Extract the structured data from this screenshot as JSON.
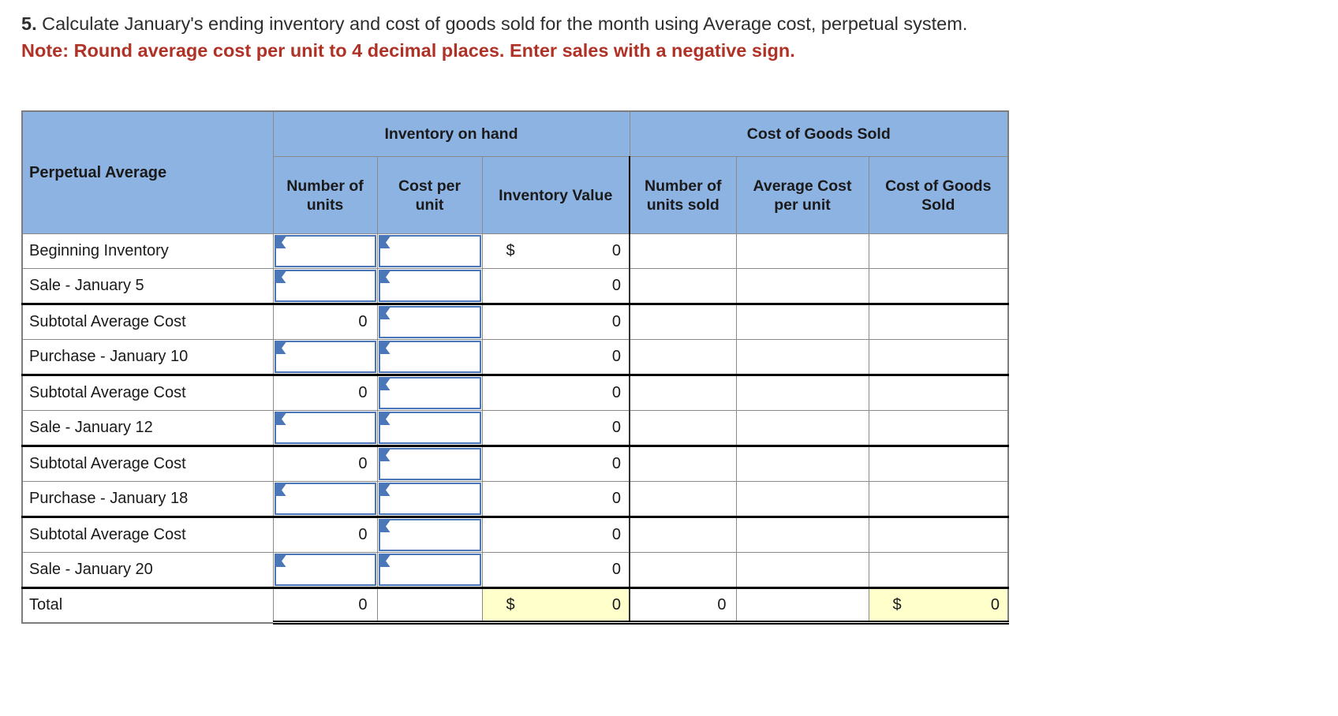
{
  "title": {
    "number": "5.",
    "text": " Calculate January's ending inventory and cost of goods sold for the month using Average cost, perpetual system.",
    "note": "Note: Round average cost per unit to 4 decimal places. Enter sales with a negative sign."
  },
  "table": {
    "corner_header": "Perpetual Average",
    "groups": [
      {
        "label": "Inventory on hand"
      },
      {
        "label": "Cost of Goods Sold"
      }
    ],
    "columns": [
      "Number of units",
      "Cost per unit",
      "Inventory Value",
      "Number of units sold",
      "Average Cost per unit",
      "Cost of Goods Sold"
    ],
    "rows": [
      {
        "label": "Beginning Inventory",
        "units": {
          "kind": "input"
        },
        "cost": {
          "kind": "input"
        },
        "inv": {
          "dollar": "$",
          "value": "0"
        },
        "sold": "",
        "avg": "",
        "cogs": {
          "dollar": "",
          "value": ""
        }
      },
      {
        "label": "Sale - January 5",
        "units": {
          "kind": "input"
        },
        "cost": {
          "kind": "input"
        },
        "inv": {
          "dollar": "",
          "value": "0"
        },
        "sold": "",
        "avg": "",
        "cogs": {
          "dollar": "",
          "value": ""
        }
      },
      {
        "label": "Subtotal Average Cost",
        "thick_top": true,
        "units": {
          "kind": "value",
          "value": "0"
        },
        "cost": {
          "kind": "input"
        },
        "inv": {
          "dollar": "",
          "value": "0"
        },
        "sold": "",
        "avg": "",
        "cogs": {
          "dollar": "",
          "value": ""
        }
      },
      {
        "label": "Purchase - January 10",
        "units": {
          "kind": "input"
        },
        "cost": {
          "kind": "input"
        },
        "inv": {
          "dollar": "",
          "value": "0"
        },
        "sold": "",
        "avg": "",
        "cogs": {
          "dollar": "",
          "value": ""
        }
      },
      {
        "label": "Subtotal Average Cost",
        "thick_top": true,
        "units": {
          "kind": "value",
          "value": "0"
        },
        "cost": {
          "kind": "input"
        },
        "inv": {
          "dollar": "",
          "value": "0"
        },
        "sold": "",
        "avg": "",
        "cogs": {
          "dollar": "",
          "value": ""
        }
      },
      {
        "label": "Sale - January 12",
        "units": {
          "kind": "input"
        },
        "cost": {
          "kind": "input"
        },
        "inv": {
          "dollar": "",
          "value": "0"
        },
        "sold": "",
        "avg": "",
        "cogs": {
          "dollar": "",
          "value": ""
        }
      },
      {
        "label": "Subtotal Average Cost",
        "thick_top": true,
        "units": {
          "kind": "value",
          "value": "0"
        },
        "cost": {
          "kind": "input"
        },
        "inv": {
          "dollar": "",
          "value": "0"
        },
        "sold": "",
        "avg": "",
        "cogs": {
          "dollar": "",
          "value": ""
        }
      },
      {
        "label": "Purchase - January 18",
        "units": {
          "kind": "input"
        },
        "cost": {
          "kind": "input"
        },
        "inv": {
          "dollar": "",
          "value": "0"
        },
        "sold": "",
        "avg": "",
        "cogs": {
          "dollar": "",
          "value": ""
        }
      },
      {
        "label": "Subtotal Average Cost",
        "thick_top": true,
        "units": {
          "kind": "value",
          "value": "0"
        },
        "cost": {
          "kind": "input"
        },
        "inv": {
          "dollar": "",
          "value": "0"
        },
        "sold": "",
        "avg": "",
        "cogs": {
          "dollar": "",
          "value": ""
        }
      },
      {
        "label": "Sale - January 20",
        "units": {
          "kind": "input"
        },
        "cost": {
          "kind": "input"
        },
        "inv": {
          "dollar": "",
          "value": "0"
        },
        "sold": "",
        "avg": "",
        "cogs": {
          "dollar": "",
          "value": ""
        }
      },
      {
        "label": "Total",
        "thick_top": true,
        "total": true,
        "units": {
          "kind": "value",
          "value": "0"
        },
        "cost": {
          "kind": "empty"
        },
        "inv": {
          "dollar": "$",
          "value": "0",
          "highlight": true
        },
        "sold": "0",
        "avg": "",
        "cogs": {
          "dollar": "$",
          "value": "0",
          "highlight": true
        }
      }
    ],
    "colors": {
      "header_bg": "#8DB3E2",
      "highlight_bg": "#FFFFCC",
      "input_border": "#4B77B9",
      "grid_line": "#8a8a8a",
      "note_red": "#B03226"
    }
  }
}
